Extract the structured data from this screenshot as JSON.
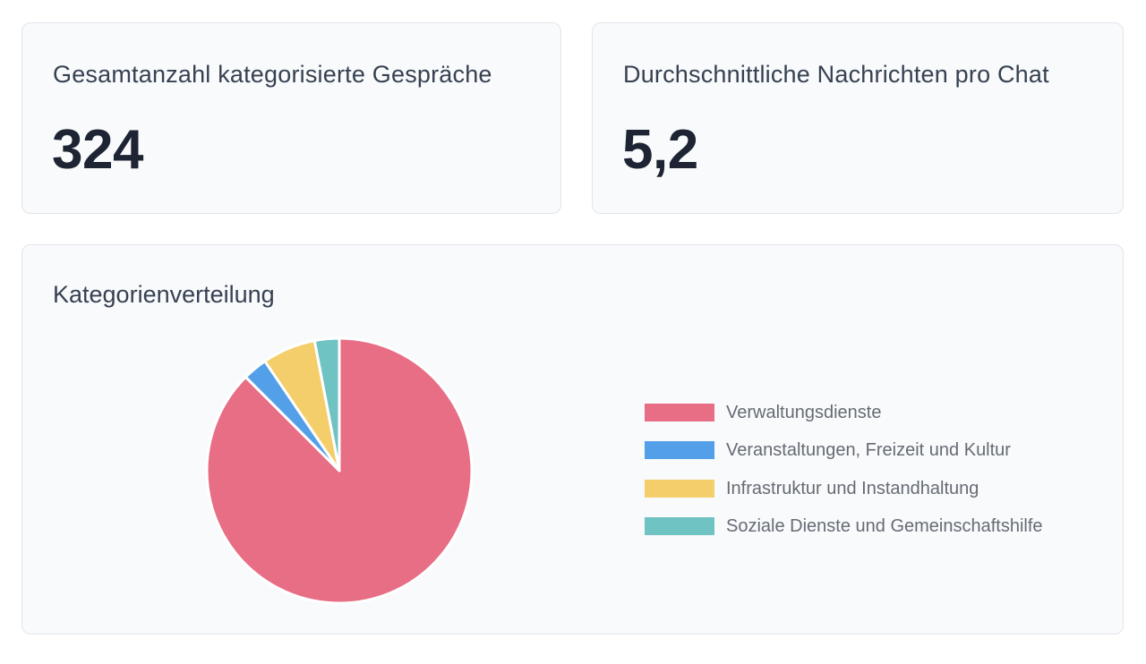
{
  "stats": {
    "total_label": "Gesamtanzahl kategorisierte Gespräche",
    "total_value": "324",
    "avg_label": "Durchschnittliche Nachrichten pro Chat",
    "avg_value": "5,2"
  },
  "chart": {
    "title": "Kategorienverteilung"
  },
  "chart_data": {
    "type": "pie",
    "title": "Kategorienverteilung",
    "categories": [
      "Verwaltungsdienste",
      "Veranstaltungen, Freizeit und Kultur",
      "Infrastruktur und Instandhaltung",
      "Soziale Dienste und Gemeinschaftshilfe"
    ],
    "values": [
      87.5,
      3.0,
      6.5,
      3.0
    ],
    "colors": [
      "#e86e85",
      "#54a0e8",
      "#f4ce6a",
      "#6fc3c2"
    ],
    "legend_position": "right"
  }
}
